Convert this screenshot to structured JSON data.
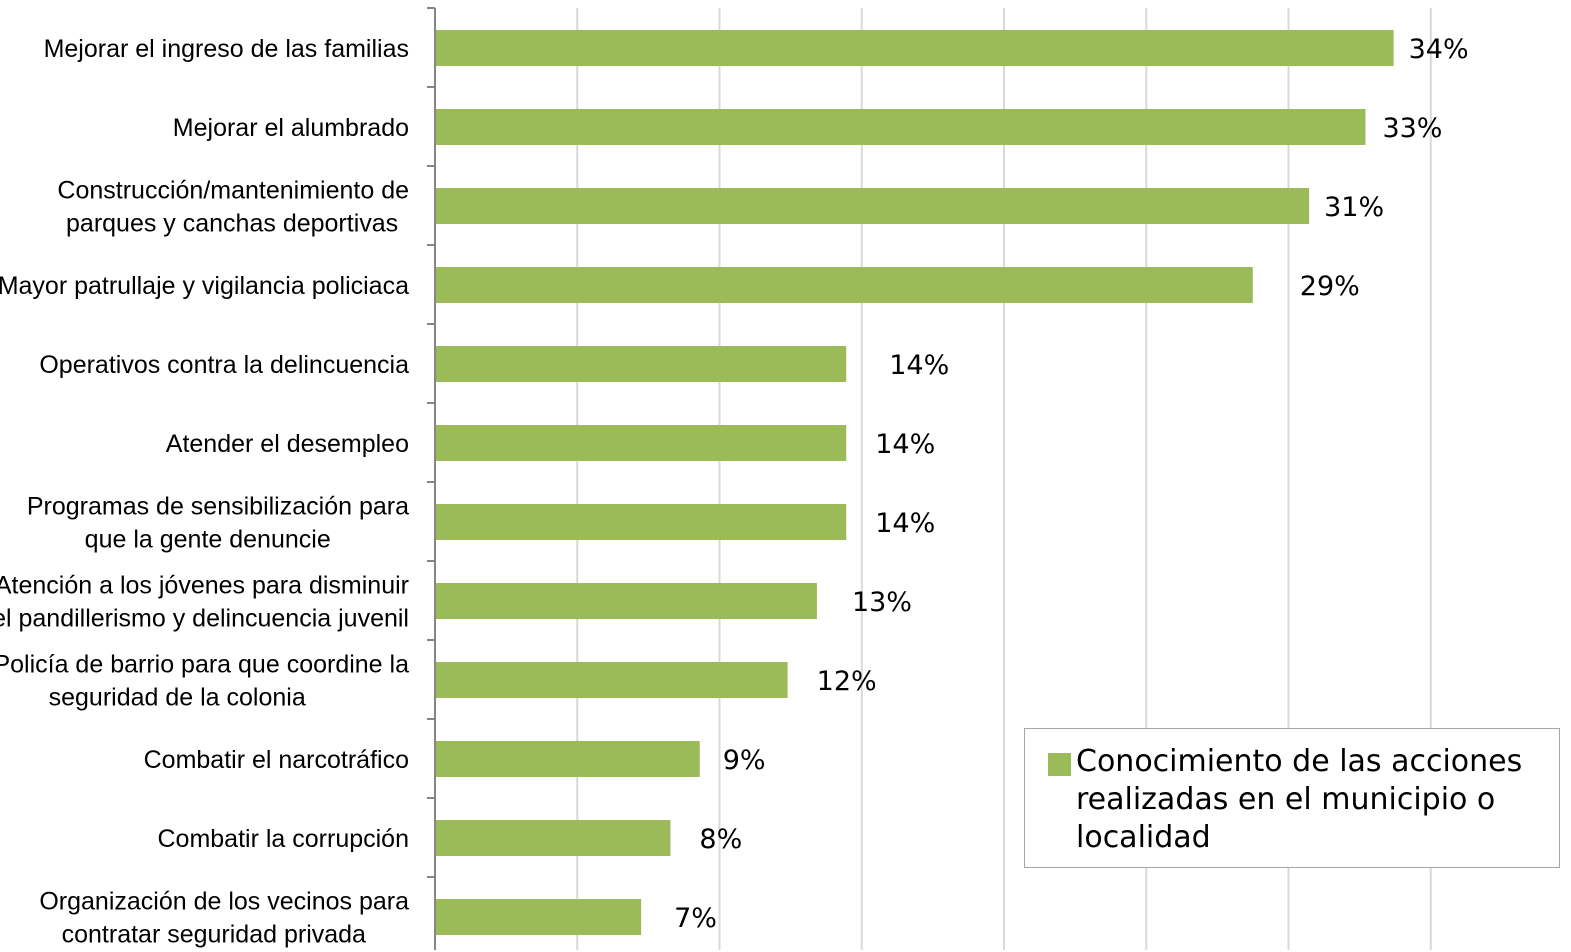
{
  "chart_data": {
    "type": "bar",
    "orientation": "horizontal",
    "categories": [
      [
        "Mejorar el ingreso de las familias"
      ],
      [
        "Mejorar el alumbrado"
      ],
      [
        "Construcción/mantenimiento de",
        "parques y canchas deportivas"
      ],
      [
        "Mayor patrullaje y vigilancia policiaca"
      ],
      [
        "Operativos contra la delincuencia"
      ],
      [
        "Atender el desempleo"
      ],
      [
        "Programas de sensibilización para",
        "que la gente denuncie"
      ],
      [
        "Atención a los jóvenes para disminuir",
        "el pandillerismo y delincuencia juvenil"
      ],
      [
        "Policía de barrio para que coordine la",
        "seguridad de la colonia"
      ],
      [
        "Combatir el narcotráfico"
      ],
      [
        "Combatir la corrupción"
      ],
      [
        "Organización de los vecinos para",
        "contratar seguridad privada"
      ]
    ],
    "series": [
      {
        "name": "Conocimiento de las acciones\nrealizadas en el municipio o\nlocalidad",
        "values": [
          34,
          33,
          31,
          29,
          14,
          14,
          14,
          13,
          12,
          9,
          8,
          7
        ],
        "labels": [
          "34%",
          "33%",
          "31%",
          "29%",
          "14%",
          "14%",
          "14%",
          "13%",
          "12%",
          "9%",
          "8%",
          "7%"
        ],
        "color": "#9bbb59"
      }
    ],
    "xlim": [
      0,
      40
    ],
    "x_gridlines": [
      5,
      10,
      15,
      20,
      25,
      30,
      35
    ],
    "grid": true,
    "gridline_color": "#d9d9d9",
    "axis_color": "#868686",
    "legend_position": "bottom-right"
  }
}
